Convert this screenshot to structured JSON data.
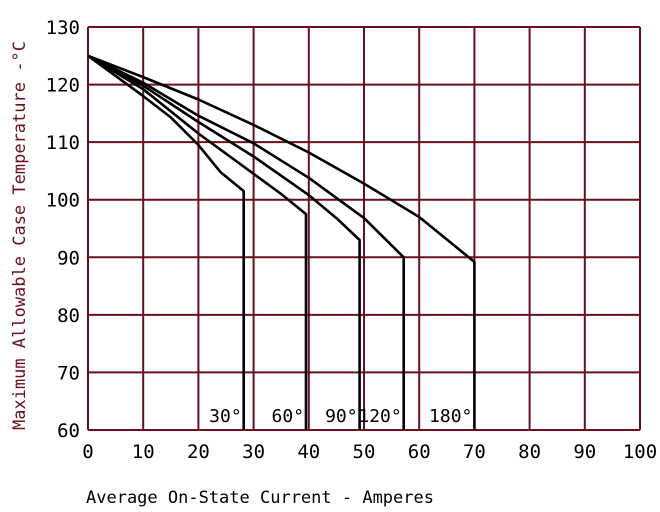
{
  "colors": {
    "grid": "#6b0f1f",
    "curve": "#000000",
    "axis_text": "#000000",
    "ylabel_text": "#6b0f1f",
    "background": "#ffffff"
  },
  "chart_data": {
    "type": "line",
    "title": "",
    "xlabel": "Average On-State Current - Amperes",
    "ylabel": "Maximum Allowable Case Temperature -°C",
    "xlim": [
      0,
      100
    ],
    "ylim": [
      60,
      130
    ],
    "x_ticks": [
      "0",
      "10",
      "20",
      "30",
      "40",
      "50",
      "60",
      "70",
      "80",
      "90",
      "100"
    ],
    "y_ticks": [
      "60",
      "70",
      "80",
      "90",
      "100",
      "110",
      "120",
      "130"
    ],
    "x_tick_values": [
      0,
      10,
      20,
      30,
      40,
      50,
      60,
      70,
      80,
      90,
      100
    ],
    "y_tick_values": [
      60,
      70,
      80,
      90,
      100,
      110,
      120,
      130
    ],
    "grid": true,
    "series": [
      {
        "name": "30°",
        "x": [
          0,
          5,
          10,
          15,
          20,
          24,
          28.2,
          28.2
        ],
        "y": [
          125,
          121.5,
          118,
          114.3,
          109.5,
          104.8,
          101.5,
          60
        ]
      },
      {
        "name": "60°",
        "x": [
          0,
          10,
          20,
          30,
          35,
          39.5,
          39.5
        ],
        "y": [
          125,
          119.2,
          111.5,
          104.5,
          101,
          97.5,
          60
        ]
      },
      {
        "name": "90°",
        "x": [
          0,
          10,
          20,
          30,
          40,
          45,
          49.2,
          49.2
        ],
        "y": [
          125,
          119.8,
          113.5,
          107.5,
          100.8,
          96.8,
          93,
          60
        ]
      },
      {
        "name": "120°",
        "x": [
          0,
          10,
          20,
          30,
          40,
          50,
          57.2,
          57.2
        ],
        "y": [
          125,
          120.3,
          114.6,
          109.8,
          103.8,
          96.8,
          90,
          60
        ]
      },
      {
        "name": "180°",
        "x": [
          0,
          10,
          20,
          30,
          40,
          50,
          60,
          70,
          70
        ],
        "y": [
          125,
          121.3,
          117.4,
          113,
          108.2,
          102.8,
          97,
          89.2,
          60
        ]
      }
    ]
  }
}
